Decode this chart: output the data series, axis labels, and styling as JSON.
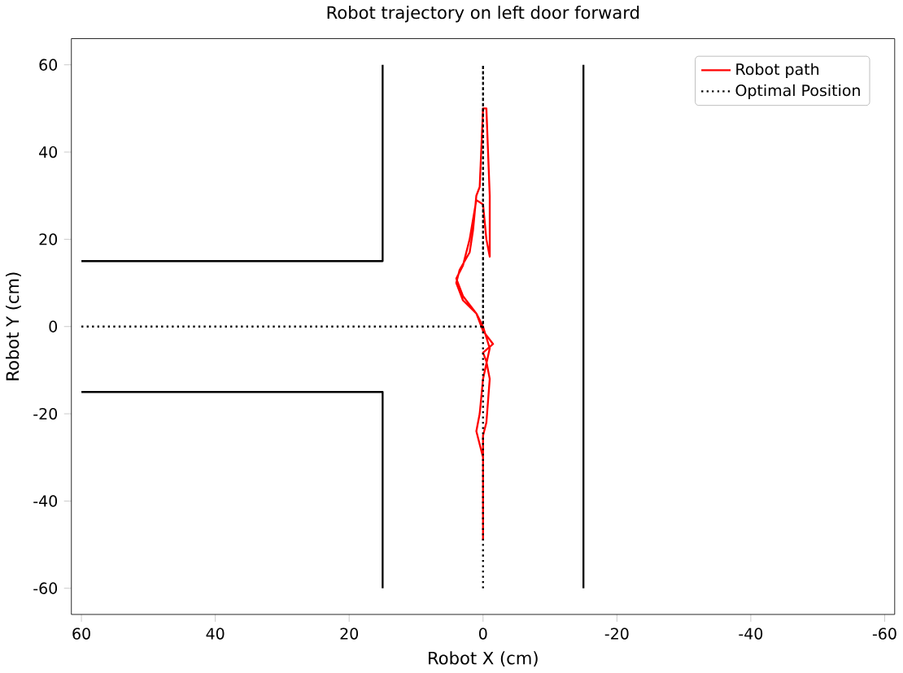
{
  "chart_data": {
    "type": "line",
    "title": "Robot trajectory on left door forward",
    "xlabel": "Robot X (cm)",
    "ylabel": "Robot Y (cm)",
    "xlim": [
      61.5,
      -61.5
    ],
    "ylim": [
      -66,
      66
    ],
    "xticks": [
      60,
      40,
      20,
      0,
      -20,
      -40,
      -60
    ],
    "yticks": [
      -60,
      -40,
      -20,
      0,
      20,
      40,
      60
    ],
    "legend": "top right",
    "series": [
      {
        "color": "#000000",
        "line_style": "solid",
        "x": [
          15,
          15,
          60,
          null,
          60,
          15,
          15,
          null,
          -15,
          -15
        ],
        "values": [
          60,
          15,
          15,
          null,
          -15,
          -15,
          -60,
          null,
          -60,
          60
        ]
      },
      {
        "name": "Robot path",
        "color": "#ff0000",
        "line_style": "solid",
        "x": [
          0,
          0,
          -0.5,
          -1,
          -0.5,
          0,
          -1.5,
          0,
          1,
          3,
          4,
          3.5,
          2,
          1.5,
          1,
          0.5,
          0,
          -0.5,
          -1,
          -1,
          -0.5,
          0,
          1,
          2,
          3,
          4,
          3,
          1,
          0,
          -1,
          0,
          0.5,
          1,
          0,
          0
        ],
        "values": [
          -49,
          -25,
          -22,
          -12,
          -8,
          -6,
          -4,
          -1,
          3,
          6,
          10,
          13,
          17,
          22,
          30,
          32,
          50,
          50,
          30,
          16,
          20,
          28,
          29,
          20,
          14,
          11,
          7,
          3,
          0,
          -5,
          -12,
          -20,
          -24,
          -30,
          -48
        ]
      },
      {
        "name": "Optimal Position",
        "color": "#000000",
        "line_style": "dotted",
        "x": [
          60,
          0,
          0,
          0
        ],
        "values": [
          0,
          0,
          60,
          -60
        ]
      }
    ]
  }
}
